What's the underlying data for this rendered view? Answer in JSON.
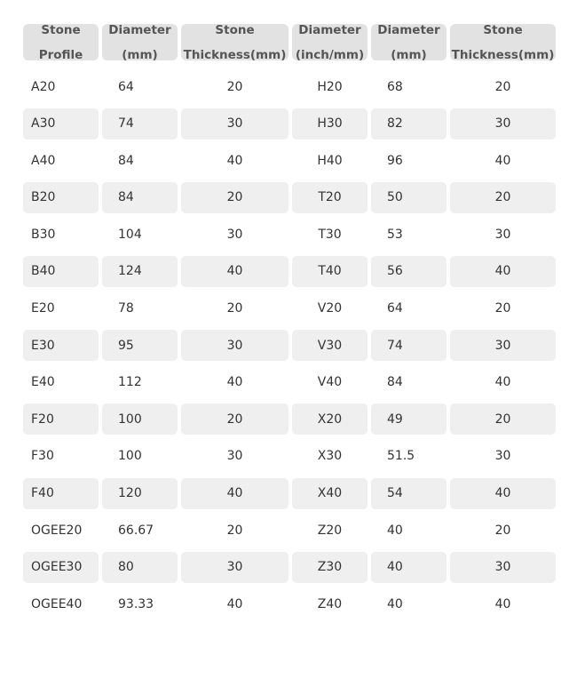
{
  "table": {
    "headers": [
      [
        "Stone",
        "Profile"
      ],
      [
        "Diameter",
        "(mm)"
      ],
      [
        "Stone",
        "Thickness(mm)"
      ],
      [
        "Diameter",
        "(inch/mm)"
      ],
      [
        "Diameter",
        "(mm)"
      ],
      [
        "Stone",
        "Thickness(mm)"
      ]
    ],
    "rows": [
      [
        "A20",
        "64",
        "20",
        "H20",
        "68",
        "20"
      ],
      [
        "A30",
        "74",
        "30",
        "H30",
        "82",
        "30"
      ],
      [
        "A40",
        "84",
        "40",
        "H40",
        "96",
        "40"
      ],
      [
        "B20",
        "84",
        "20",
        "T20",
        "50",
        "20"
      ],
      [
        "B30",
        "104",
        "30",
        "T30",
        "53",
        "30"
      ],
      [
        "B40",
        "124",
        "40",
        "T40",
        "56",
        "40"
      ],
      [
        "E20",
        "78",
        "20",
        "V20",
        "64",
        "20"
      ],
      [
        "E30",
        "95",
        "30",
        "V30",
        "74",
        "30"
      ],
      [
        "E40",
        "112",
        "40",
        "V40",
        "84",
        "40"
      ],
      [
        "F20",
        "100",
        "20",
        "X20",
        "49",
        "20"
      ],
      [
        "F30",
        "100",
        "30",
        "X30",
        "51.5",
        "30"
      ],
      [
        "F40",
        "120",
        "40",
        "X40",
        "54",
        "40"
      ],
      [
        "OGEE20",
        "66.67",
        "20",
        "Z20",
        "40",
        "20"
      ],
      [
        "OGEE30",
        "80",
        "30",
        "Z30",
        "40",
        "30"
      ],
      [
        "OGEE40",
        "93.33",
        "40",
        "Z40",
        "40",
        "40"
      ]
    ]
  },
  "colors": {
    "header_bg": "#e2e2e2",
    "stripe_bg": "#efefef"
  }
}
